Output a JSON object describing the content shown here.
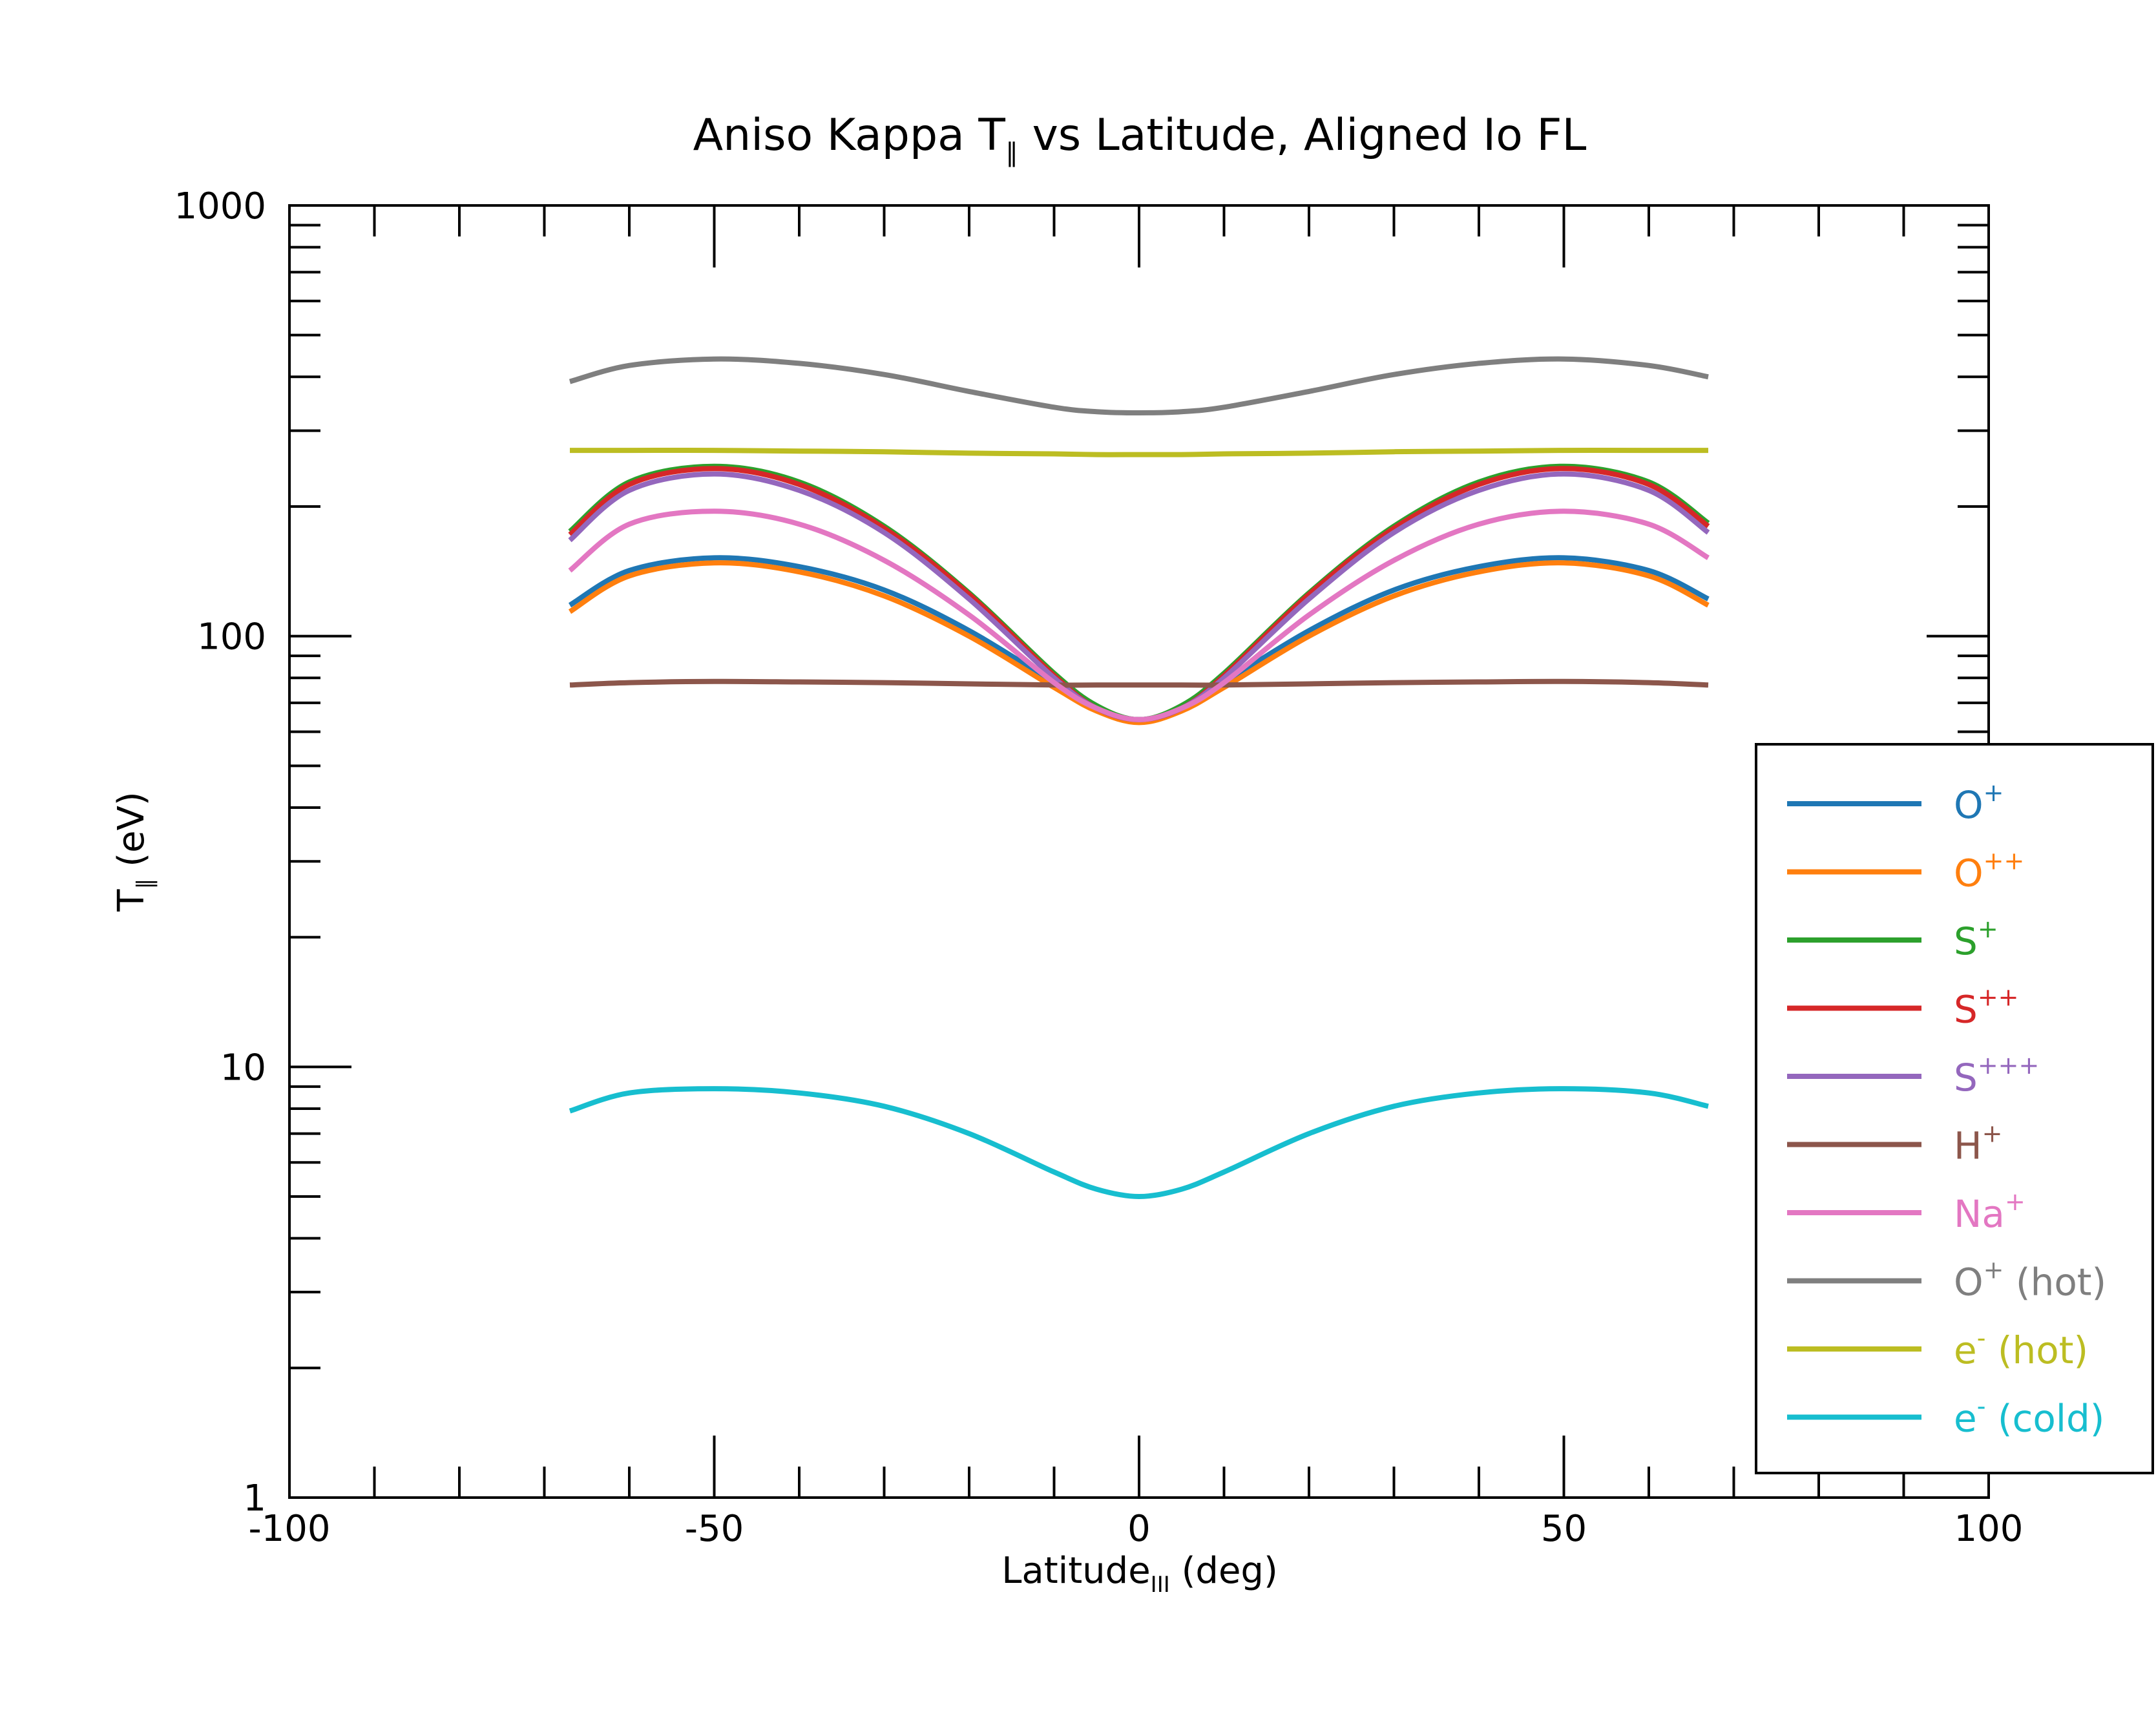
{
  "chart_data": {
    "type": "line",
    "title": {
      "main": "Aniso Kappa T",
      "sub": "∥",
      "rest": " vs Latitude, Aligned Io FL"
    },
    "xlabel": {
      "main": "Latitude",
      "sub": "III",
      "rest": " (deg)"
    },
    "ylabel": {
      "main": "T",
      "sub": "∥",
      "rest": " (eV)"
    },
    "xlim": [
      -100,
      100
    ],
    "ylim": [
      1,
      1000
    ],
    "yscale": "log",
    "x_ticks": [
      "-100",
      "-50",
      "0",
      "50",
      "100"
    ],
    "y_ticks": [
      "1",
      "10",
      "100",
      "1000"
    ],
    "grid": false,
    "legend_position": "right",
    "x": [
      -67,
      -60,
      -50,
      -40,
      -30,
      -20,
      -10,
      -5,
      0,
      5,
      10,
      20,
      30,
      40,
      50,
      60,
      67
    ],
    "series": [
      {
        "name": "O",
        "sup": "+",
        "suffix": "",
        "color": "#1f77b4",
        "values": [
          118,
          142,
          152,
          145,
          128,
          103,
          78,
          68,
          64,
          68,
          78,
          103,
          128,
          145,
          152,
          142,
          122
        ]
      },
      {
        "name": "O",
        "sup": "++",
        "suffix": "",
        "color": "#ff7f0e",
        "values": [
          114,
          138,
          148,
          141,
          124,
          100,
          76,
          67,
          63,
          67,
          76,
          100,
          124,
          141,
          148,
          138,
          118
        ]
      },
      {
        "name": "S",
        "sup": "+",
        "suffix": "",
        "color": "#2ca02c",
        "values": [
          175,
          228,
          248,
          228,
          180,
          126,
          82,
          69,
          64,
          69,
          82,
          126,
          180,
          228,
          248,
          228,
          183
        ]
      },
      {
        "name": "S",
        "sup": "++",
        "suffix": "",
        "color": "#d62728",
        "values": [
          172,
          225,
          245,
          225,
          178,
          125,
          81,
          68,
          64,
          68,
          81,
          125,
          178,
          225,
          245,
          225,
          180
        ]
      },
      {
        "name": "S",
        "sup": "+++",
        "suffix": "",
        "color": "#9467bd",
        "values": [
          167,
          218,
          238,
          218,
          174,
          122,
          80,
          68,
          64,
          68,
          80,
          122,
          174,
          218,
          238,
          218,
          174
        ]
      },
      {
        "name": "H",
        "sup": "+",
        "suffix": "",
        "color": "#8c564b",
        "values": [
          77,
          78,
          78.5,
          78.3,
          78,
          77.5,
          77,
          77,
          77,
          77,
          77,
          77.5,
          78,
          78.3,
          78.5,
          78,
          77
        ]
      },
      {
        "name": "Na",
        "sup": "+",
        "suffix": "",
        "color": "#e377c2",
        "values": [
          142,
          182,
          195,
          182,
          150,
          112,
          78,
          68,
          64,
          68,
          78,
          112,
          150,
          182,
          195,
          182,
          152
        ]
      },
      {
        "name": "O",
        "sup": "+",
        "suffix": " (hot)",
        "color": "#7f7f7f",
        "values": [
          390,
          425,
          440,
          430,
          405,
          370,
          340,
          332,
          330,
          332,
          340,
          370,
          405,
          430,
          440,
          425,
          400
        ]
      },
      {
        "name": "e",
        "sup": "-",
        "suffix": " (hot)",
        "color": "#bcbd22",
        "values": [
          270,
          270,
          270,
          269,
          268,
          266,
          265,
          264,
          264,
          264,
          265,
          266,
          268,
          269,
          270,
          270,
          270
        ]
      },
      {
        "name": "e",
        "sup": "-",
        "suffix": " (cold)",
        "color": "#17becf",
        "values": [
          7.9,
          8.7,
          8.9,
          8.7,
          8.1,
          7.0,
          5.7,
          5.2,
          5.0,
          5.2,
          5.7,
          7.0,
          8.1,
          8.7,
          8.9,
          8.7,
          8.1
        ]
      }
    ]
  }
}
